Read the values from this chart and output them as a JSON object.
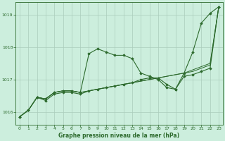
{
  "bg_color": "#cceedd",
  "grid_color": "#aaccbb",
  "line_color": "#2d6a2d",
  "title": "Graphe pression niveau de la mer (hPa)",
  "ylim": [
    1015.6,
    1019.4
  ],
  "xlim": [
    -0.5,
    23.5
  ],
  "yticks": [
    1016,
    1017,
    1018,
    1019
  ],
  "xticks": [
    0,
    1,
    2,
    3,
    4,
    5,
    6,
    7,
    8,
    9,
    10,
    11,
    12,
    13,
    14,
    15,
    16,
    17,
    18,
    19,
    20,
    21,
    22,
    23
  ],
  "series_main": [
    1015.85,
    1016.05,
    1016.45,
    1016.4,
    1016.6,
    1016.65,
    1016.65,
    1016.6,
    1017.8,
    1017.95,
    1017.85,
    1017.75,
    1017.75,
    1017.65,
    1017.2,
    1017.1,
    1017.0,
    1016.75,
    1016.7,
    1017.2,
    1017.85,
    1018.75,
    1019.05,
    1019.25
  ],
  "series_lower": [
    1015.85,
    1016.05,
    1016.45,
    1016.35,
    1016.55,
    1016.6,
    1016.6,
    1016.55,
    1016.65,
    1016.7,
    1016.75,
    1016.8,
    1016.85,
    1016.9,
    1017.0,
    1017.05,
    1017.05,
    1016.85,
    1016.7,
    1017.1,
    1017.15,
    1017.25,
    1017.35,
    1019.25
  ],
  "series_trend1": [
    1015.85,
    1016.05,
    1016.45,
    1016.4,
    1016.6,
    1016.65,
    1016.65,
    1016.6,
    1016.65,
    1016.7,
    1016.75,
    1016.8,
    1016.85,
    1016.9,
    1016.95,
    1017.0,
    1017.05,
    1017.1,
    1017.15,
    1017.2,
    1017.25,
    1017.35,
    1017.45,
    1019.25
  ],
  "series_trend2": [
    1015.85,
    1016.05,
    1016.45,
    1016.4,
    1016.6,
    1016.65,
    1016.65,
    1016.6,
    1016.65,
    1016.7,
    1016.75,
    1016.8,
    1016.85,
    1016.9,
    1016.95,
    1017.0,
    1017.05,
    1017.1,
    1017.15,
    1017.2,
    1017.3,
    1017.4,
    1017.5,
    1019.25
  ]
}
